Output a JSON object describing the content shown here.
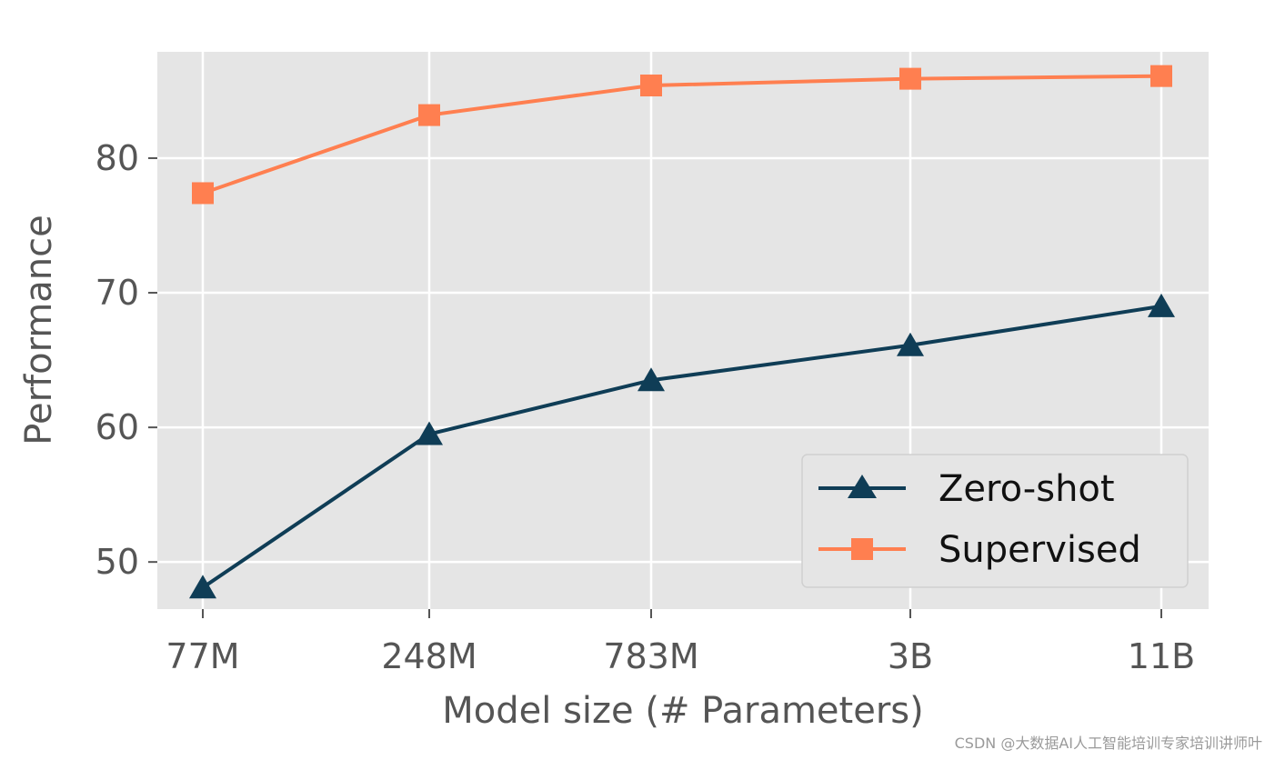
{
  "chart_data": {
    "type": "line",
    "categories": [
      "77M",
      "248M",
      "783M",
      "3B",
      "11B"
    ],
    "series": [
      {
        "name": "Zero-shot",
        "values": [
          48.1,
          59.5,
          63.5,
          66.1,
          69.0
        ],
        "color": "#0f3d56",
        "marker": "triangle"
      },
      {
        "name": "Supervised",
        "values": [
          77.4,
          83.2,
          85.4,
          85.9,
          86.1
        ],
        "color": "#ff7f50",
        "marker": "square"
      }
    ],
    "xlabel": "Model size (# Parameters)",
    "ylabel": "Performance",
    "ylim": [
      46.5,
      87.9
    ],
    "yticks": [
      50,
      60,
      70,
      80
    ],
    "ytick_labels": [
      "50",
      "60",
      "70",
      "80"
    ],
    "grid": true,
    "background": "#e5e5e5",
    "legend_position": "lower-right"
  },
  "watermark": "CSDN @大数据AI人工智能培训专家培训讲师叶"
}
